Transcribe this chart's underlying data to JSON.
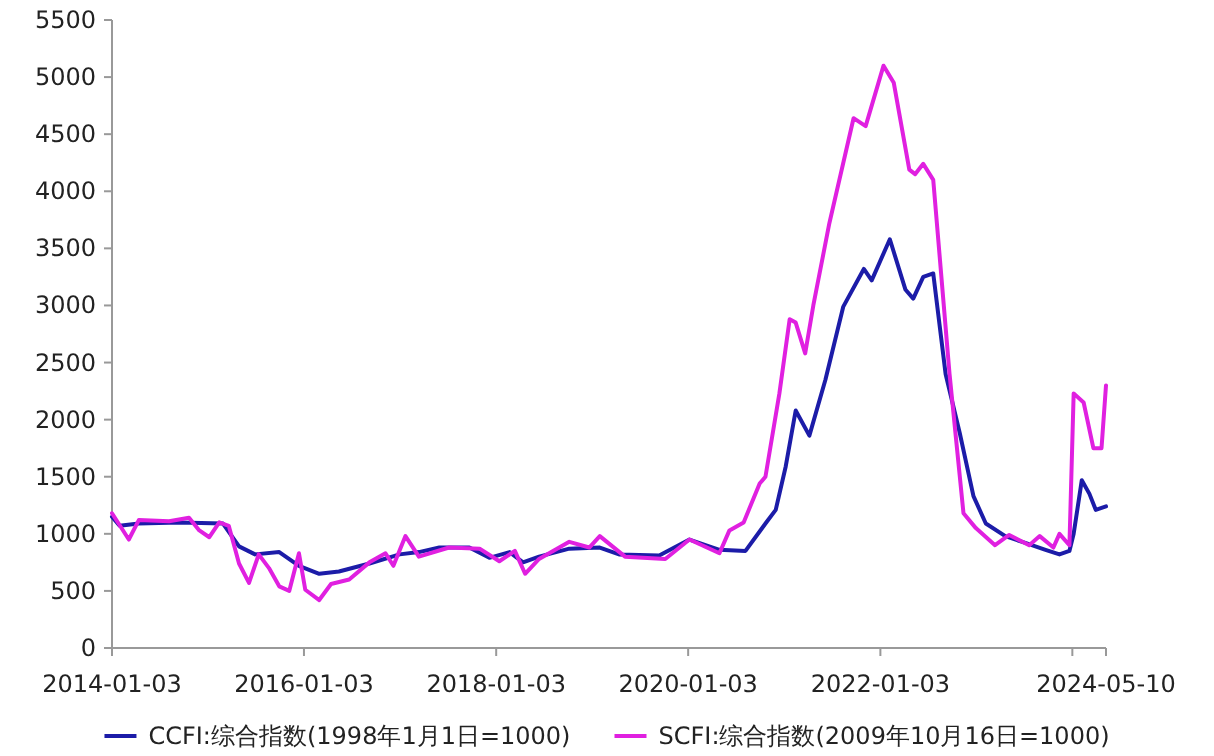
{
  "chart_data": {
    "type": "line",
    "xlim": [
      "2014-01-03",
      "2024-05-10"
    ],
    "xticks": [
      "2014-01-03",
      "2016-01-03",
      "2018-01-03",
      "2020-01-03",
      "2022-01-03",
      {
        "value": "2024-01-03",
        "label": null
      },
      "2024-05-10"
    ],
    "ylim": [
      0,
      5500
    ],
    "yticks": [
      0,
      500,
      1000,
      1500,
      2000,
      2500,
      3000,
      3500,
      4000,
      4500,
      5000,
      5500
    ],
    "grid": false,
    "legend": "bottom",
    "series": [
      {
        "name": "CCFI:综合指数(1998年1月1日=1000)",
        "color": "#1c1ca8",
        "x": [
          "2014-01-03",
          "2014-02-01",
          "2014-04-15",
          "2014-09-15",
          "2015-03-01",
          "2015-05-01",
          "2015-07-01",
          "2015-10-01",
          "2015-12-15",
          "2016-03-01",
          "2016-05-15",
          "2016-09-08",
          "2017-01-01",
          "2017-03-15",
          "2017-06-01",
          "2017-09-23",
          "2017-12-08",
          "2018-02-23",
          "2018-04-15",
          "2018-06-15",
          "2018-10-08",
          "2019-02-01",
          "2019-04-15",
          "2019-09-15",
          "2020-01-08",
          "2020-05-01",
          "2020-08-08",
          "2020-10-23",
          "2020-12-01",
          "2021-01-08",
          "2021-02-15",
          "2021-04-08",
          "2021-06-08",
          "2021-08-15",
          "2021-11-01",
          "2021-12-01",
          "2022-02-08",
          "2022-04-08",
          "2022-05-08",
          "2022-06-15",
          "2022-07-23",
          "2022-09-08",
          "2022-11-01",
          "2022-12-23",
          "2023-02-08",
          "2023-04-23",
          "2023-07-08",
          "2023-09-23",
          "2023-11-15",
          "2023-12-23",
          "2024-01-08",
          "2024-02-08",
          "2024-03-08",
          "2024-04-01",
          "2024-05-10"
        ],
        "values": [
          1150,
          1070,
          1090,
          1100,
          1090,
          890,
          820,
          840,
          720,
          650,
          670,
          740,
          820,
          840,
          880,
          880,
          790,
          840,
          750,
          800,
          870,
          880,
          820,
          810,
          950,
          860,
          850,
          1090,
          1210,
          1590,
          2080,
          1860,
          2350,
          2990,
          3320,
          3220,
          3580,
          3140,
          3060,
          3250,
          3280,
          2400,
          1880,
          1330,
          1090,
          980,
          920,
          860,
          820,
          850,
          1000,
          1470,
          1350,
          1210,
          1240
        ]
      },
      {
        "name": "SCFI:综合指数(2009年10月16日=1000)",
        "color": "#e020e0",
        "x": [
          "2014-01-03",
          "2014-03-08",
          "2014-04-15",
          "2014-08-08",
          "2014-10-23",
          "2014-12-01",
          "2015-01-08",
          "2015-02-15",
          "2015-03-23",
          "2015-05-01",
          "2015-06-08",
          "2015-07-15",
          "2015-08-23",
          "2015-10-01",
          "2015-11-08",
          "2015-12-15",
          "2016-01-08",
          "2016-03-01",
          "2016-04-15",
          "2016-06-23",
          "2016-09-08",
          "2016-11-08",
          "2016-12-08",
          "2017-01-23",
          "2017-03-15",
          "2017-07-08",
          "2017-11-01",
          "2018-01-15",
          "2018-03-15",
          "2018-04-23",
          "2018-06-15",
          "2018-10-08",
          "2018-12-23",
          "2019-02-01",
          "2019-05-08",
          "2019-10-08",
          "2020-01-08",
          "2020-05-01",
          "2020-06-08",
          "2020-08-01",
          "2020-10-01",
          "2020-10-23",
          "2020-12-15",
          "2021-01-23",
          "2021-02-15",
          "2021-03-23",
          "2021-04-23",
          "2021-06-23",
          "2021-09-23",
          "2021-11-08",
          "2022-01-15",
          "2022-02-23",
          "2022-04-23",
          "2022-05-15",
          "2022-06-15",
          "2022-07-23",
          "2022-09-23",
          "2022-11-15",
          "2023-01-01",
          "2023-03-15",
          "2023-05-08",
          "2023-07-23",
          "2023-09-01",
          "2023-10-23",
          "2023-11-15",
          "2023-12-23",
          "2024-01-08",
          "2024-02-15",
          "2024-03-23",
          "2024-04-23",
          "2024-05-10"
        ],
        "values": [
          1180,
          950,
          1120,
          1110,
          1140,
          1030,
          970,
          1100,
          1070,
          740,
          570,
          820,
          700,
          540,
          500,
          830,
          510,
          420,
          560,
          600,
          750,
          830,
          720,
          980,
          800,
          880,
          870,
          760,
          850,
          650,
          780,
          930,
          880,
          980,
          800,
          780,
          950,
          830,
          1030,
          1100,
          1440,
          1500,
          2230,
          2880,
          2850,
          2580,
          3000,
          3720,
          4640,
          4570,
          5100,
          4950,
          4190,
          4150,
          4240,
          4100,
          2400,
          1180,
          1050,
          900,
          990,
          900,
          980,
          880,
          1000,
          900,
          2230,
          2150,
          1750,
          1750,
          2300
        ]
      }
    ]
  }
}
